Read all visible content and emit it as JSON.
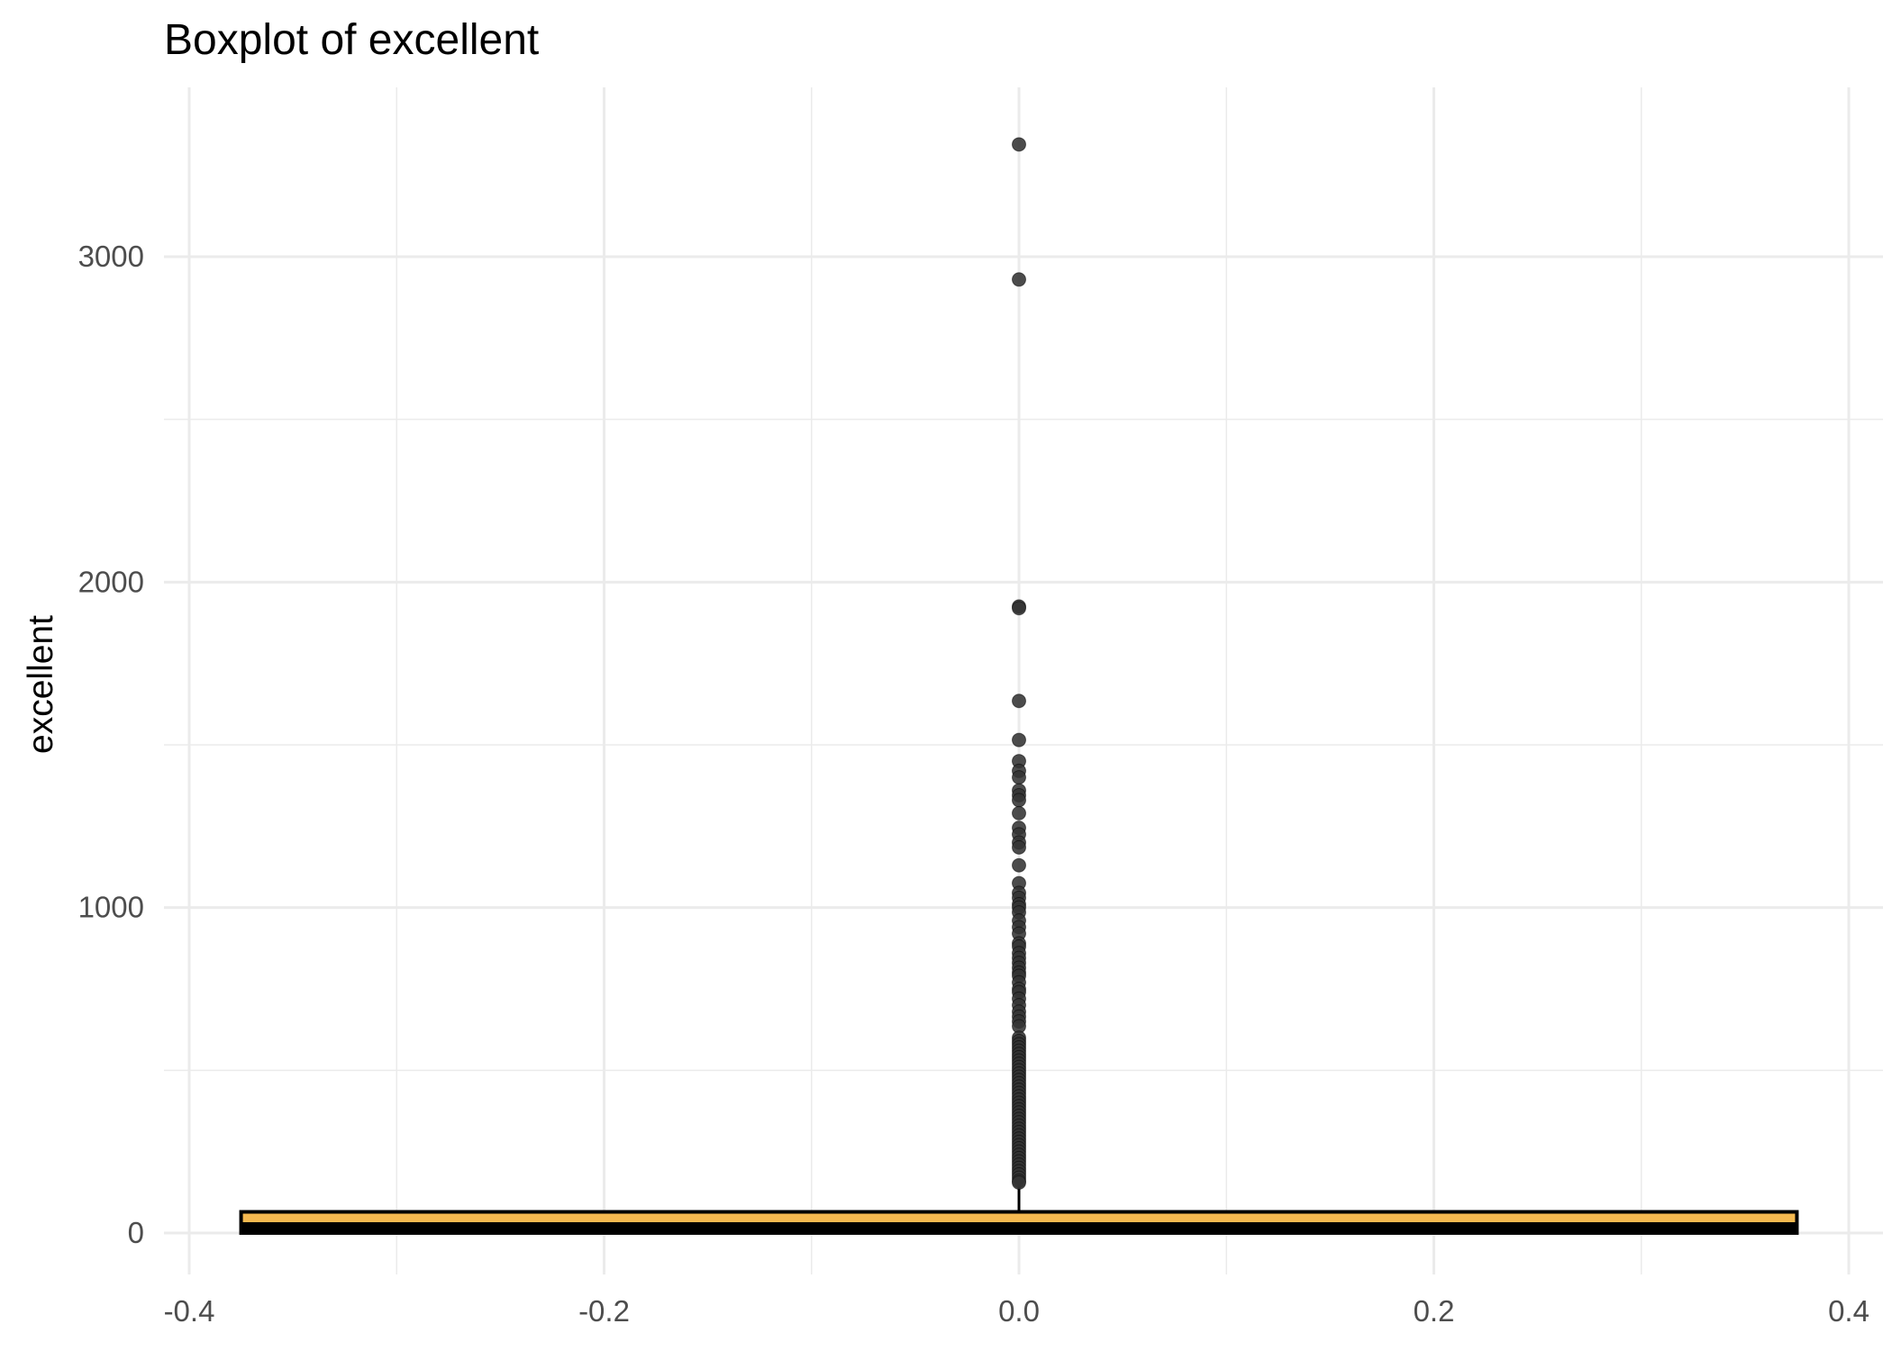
{
  "chart_data": {
    "type": "boxplot",
    "title": "Boxplot of excellent",
    "xlabel": "",
    "ylabel": "excellent",
    "xlim": [
      -0.4,
      0.4
    ],
    "ylim": [
      -150,
      3500
    ],
    "x_ticks": [
      -0.4,
      -0.2,
      0.0,
      0.2,
      0.4
    ],
    "x_tick_labels": [
      "-0.4",
      "-0.2",
      "0.0",
      "0.2",
      "0.4"
    ],
    "x_minor_ticks": [
      -0.3,
      -0.1,
      0.1,
      0.3
    ],
    "y_ticks": [
      0,
      1000,
      2000,
      3000
    ],
    "y_tick_labels": [
      "0",
      "1000",
      "2000",
      "3000"
    ],
    "y_minor_ticks": [
      500,
      1500,
      2500
    ],
    "grid": true,
    "box": {
      "x_center": 0.0,
      "x_left": -0.375,
      "x_right": 0.375,
      "q1": 0,
      "median": 0,
      "q3": 65,
      "whisker_low": 0,
      "whisker_high": 150,
      "fill": "#f5b950",
      "outline": "#000000"
    },
    "outliers": [
      3345,
      2930,
      1925,
      1920,
      1635,
      1515,
      1450,
      1420,
      1400,
      1360,
      1345,
      1330,
      1290,
      1245,
      1225,
      1200,
      1185,
      1130,
      1075,
      1045,
      1030,
      1010,
      1000,
      985,
      960,
      940,
      920,
      890,
      880,
      860,
      845,
      830,
      815,
      800,
      790,
      770,
      750,
      740,
      720,
      700,
      680,
      665,
      650,
      635,
      600,
      590,
      580,
      570,
      560,
      550,
      540,
      530,
      520,
      510,
      500,
      490,
      480,
      470,
      460,
      450,
      440,
      430,
      420,
      410,
      400,
      390,
      380,
      370,
      360,
      350,
      340,
      330,
      320,
      310,
      300,
      290,
      280,
      270,
      260,
      250,
      240,
      230,
      220,
      210,
      200,
      190,
      180,
      170,
      160,
      155
    ],
    "outlier_color": "#333333"
  }
}
